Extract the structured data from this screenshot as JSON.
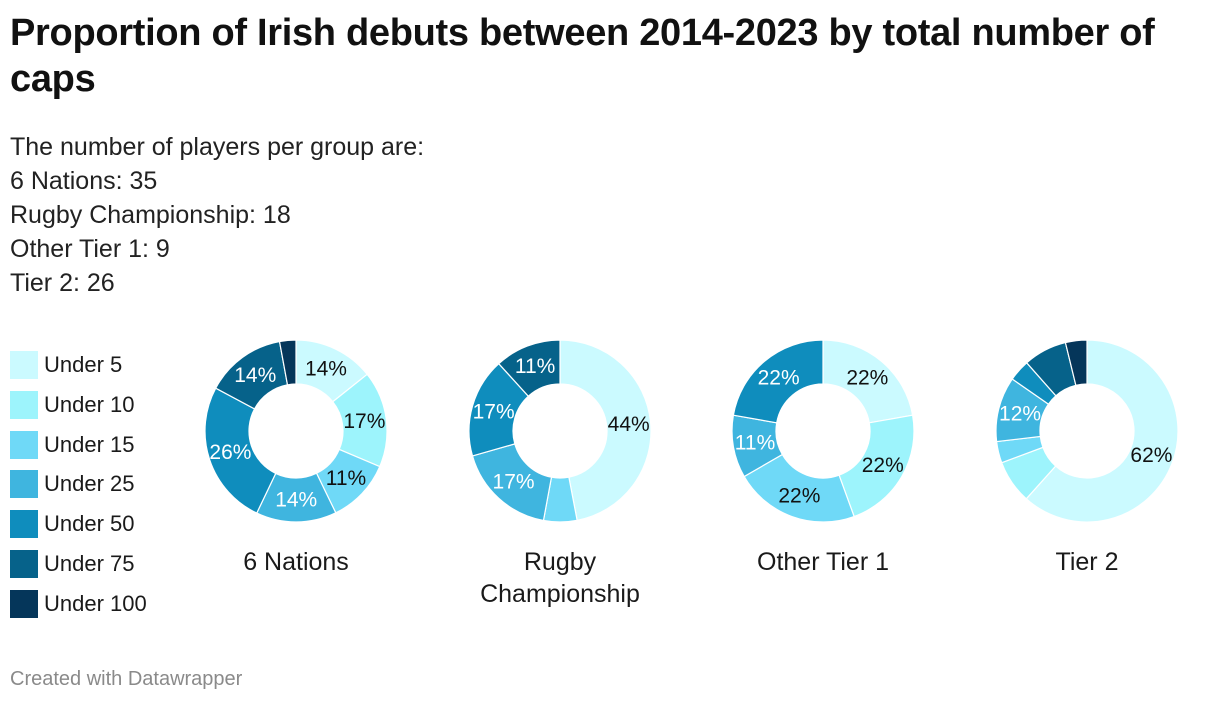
{
  "title": "Proportion of Irish debuts between 2014-2023 by total number of caps",
  "description": [
    "The number of players per group are:",
    "6 Nations: 35",
    "Rugby Championship: 18",
    "Other Tier 1: 9",
    "Tier 2: 26"
  ],
  "footer": "Created with Datawrapper",
  "colors": {
    "Under 5": "#cbfaff",
    "Under 10": "#9df4fc",
    "Under 15": "#6fd9f7",
    "Under 25": "#3fb5df",
    "Under 50": "#0f8dbd",
    "Under 75": "#06628a",
    "Under 100": "#05365a"
  },
  "chart_data": {
    "type": "donut",
    "title": "Proportion of Irish debuts between 2014-2023 by total number of caps",
    "legend": [
      "Under 5",
      "Under 10",
      "Under 15",
      "Under 25",
      "Under 50",
      "Under 75",
      "Under 100"
    ],
    "legend_position": "left",
    "charts": [
      {
        "name": "6 Nations",
        "name_lines": [
          "6 Nations"
        ],
        "players": 35,
        "values": [
          14.3,
          17.1,
          11.4,
          14.3,
          25.7,
          14.3,
          2.9
        ],
        "labels": [
          "14%",
          "17%",
          "11%",
          "14%",
          "26%",
          "14%",
          ""
        ]
      },
      {
        "name": "Rugby Championship",
        "name_lines": [
          "Rugby",
          "Championship"
        ],
        "players": 18,
        "values": [
          44.4,
          0,
          5.6,
          16.7,
          16.7,
          11.1,
          0
        ],
        "labels": [
          "44%",
          "",
          "",
          "17%",
          "17%",
          "11%",
          ""
        ]
      },
      {
        "name": "Other Tier 1",
        "name_lines": [
          "Other Tier 1"
        ],
        "players": 9,
        "values": [
          22.2,
          22.2,
          22.2,
          11.1,
          22.2,
          0,
          0
        ],
        "labels": [
          "22%",
          "22%",
          "22%",
          "11%",
          "22%",
          "",
          ""
        ]
      },
      {
        "name": "Tier 2",
        "name_lines": [
          "Tier 2"
        ],
        "players": 26,
        "values": [
          61.5,
          7.7,
          3.8,
          11.5,
          3.8,
          7.7,
          3.8
        ],
        "labels": [
          "62%",
          "",
          "",
          "12%",
          "",
          "",
          ""
        ]
      }
    ]
  }
}
